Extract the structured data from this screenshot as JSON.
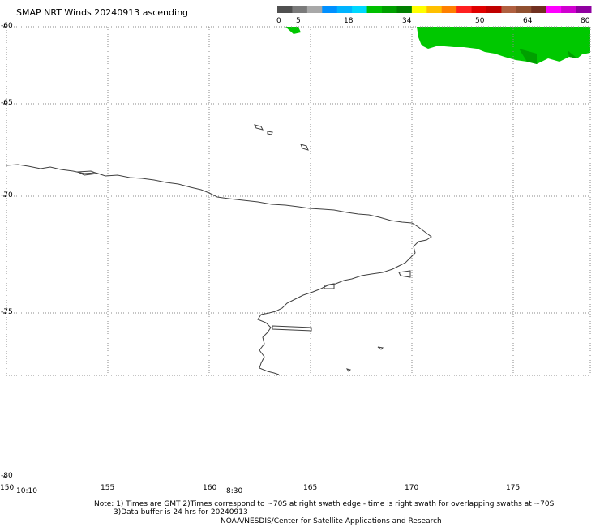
{
  "title": "SMAP NRT Winds 20240913 ascending",
  "colorbar": {
    "labels": [
      "0",
      "5",
      "18",
      "34",
      "50",
      "64",
      "80"
    ],
    "colors": [
      "#505050",
      "#7a7a7a",
      "#a8a8a8",
      "#0090ff",
      "#00b4ff",
      "#00d8ff",
      "#00c000",
      "#00a000",
      "#008000",
      "#ffff00",
      "#ffc000",
      "#ff8000",
      "#ff2020",
      "#e00000",
      "#c00000",
      "#b06040",
      "#905030",
      "#703020",
      "#ff00ff",
      "#d000d0",
      "#9000a0"
    ]
  },
  "lat_labels": [
    "-60",
    "-65",
    "-70",
    "-75",
    "-80"
  ],
  "lon_labels": [
    "150",
    "155",
    "160",
    "165",
    "170",
    "175"
  ],
  "time_labels": [
    "10:10",
    "8:30"
  ],
  "note": {
    "line1": "Note: 1) Times are GMT 2)Times correspond to ~70S at right swath edge - time is right swath for overlapping swaths at ~70S",
    "line2": "3)Data buffer is 24 hrs for 20240913",
    "line3": "NOAA/NESDIS/Center for Satellite Applications and Research"
  },
  "colors": {
    "wind_green": "#00c800",
    "coast": "#404040",
    "grid": "#888888"
  }
}
